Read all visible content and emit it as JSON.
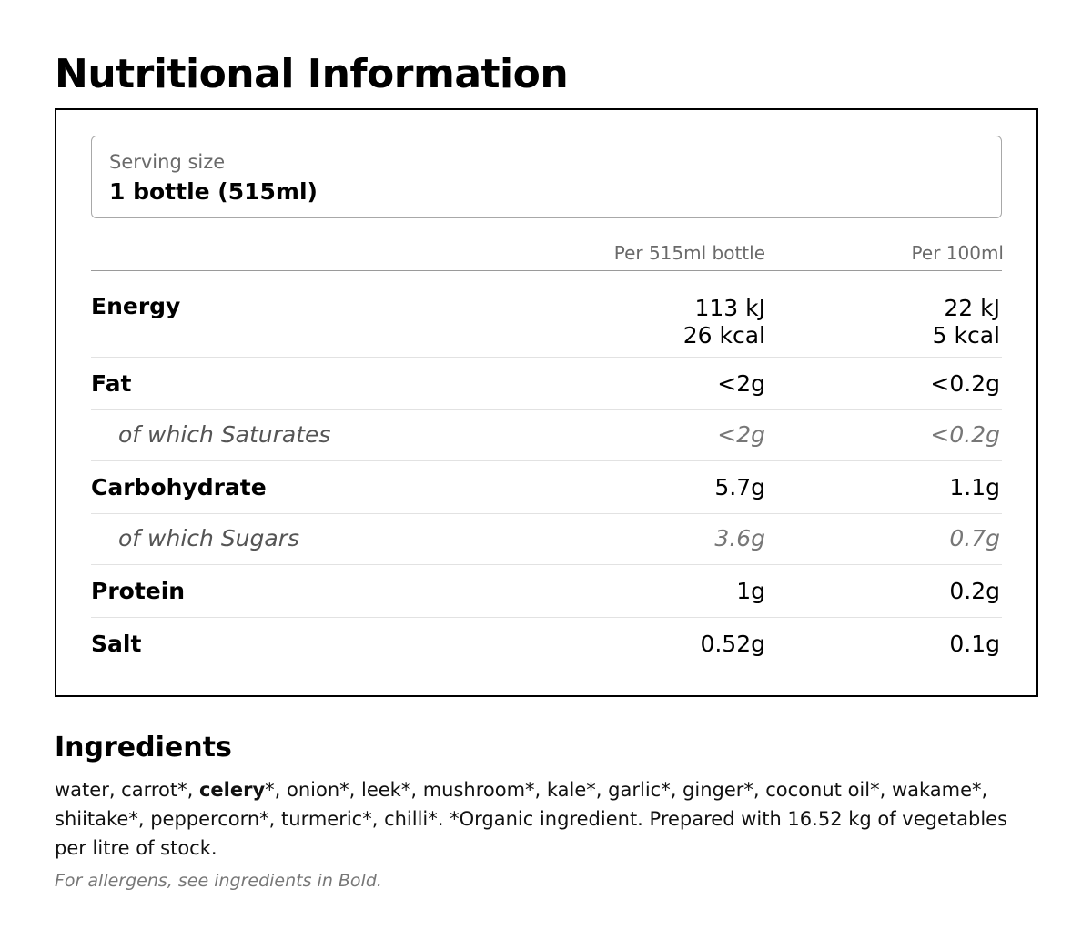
{
  "title": "Nutritional Information",
  "serving": {
    "label": "Serving size",
    "value": "1 bottle (515ml)"
  },
  "columns": {
    "per_bottle": "Per 515ml bottle",
    "per_100ml": "Per 100ml"
  },
  "rows": [
    {
      "label": "Energy",
      "per_bottle": [
        "113 kJ",
        "26 kcal"
      ],
      "per_100ml": [
        "22 kJ",
        "5 kcal"
      ],
      "sub": false
    },
    {
      "label": "Fat",
      "per_bottle": [
        "<2g"
      ],
      "per_100ml": [
        "<0.2g"
      ],
      "sub": false
    },
    {
      "label": "of which Saturates",
      "per_bottle": [
        "<2g"
      ],
      "per_100ml": [
        "<0.2g"
      ],
      "sub": true
    },
    {
      "label": "Carbohydrate",
      "per_bottle": [
        "5.7g"
      ],
      "per_100ml": [
        "1.1g"
      ],
      "sub": false
    },
    {
      "label": "of which Sugars",
      "per_bottle": [
        "3.6g"
      ],
      "per_100ml": [
        "0.7g"
      ],
      "sub": true
    },
    {
      "label": "Protein",
      "per_bottle": [
        "1g"
      ],
      "per_100ml": [
        "0.2g"
      ],
      "sub": false
    },
    {
      "label": "Salt",
      "per_bottle": [
        "0.52g"
      ],
      "per_100ml": [
        "0.1g"
      ],
      "sub": false
    }
  ],
  "ingredients": {
    "title": "Ingredients",
    "text_before": "water, carrot*, ",
    "allergen": "celery",
    "text_after": "*, onion*, leek*, mushroom*, kale*, garlic*, ginger*, coconut oil*, wakame*, shiitake*, peppercorn*, turmeric*, chilli*. *Organic ingredient. Prepared with 16.52 kg of vegetables per litre of stock.",
    "allergen_note": "For allergens, see ingredients in Bold."
  }
}
